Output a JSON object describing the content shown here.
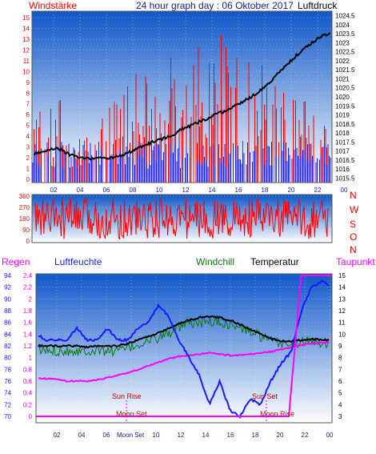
{
  "colors": {
    "red": "#ff0000",
    "blue": "#1a1aff",
    "green": "#0a7a0a",
    "black": "#000000",
    "magenta": "#ff00ff",
    "navy": "#1a1a8c",
    "bg_top": "#0f57c8",
    "bg_bottom": "#ffffff"
  },
  "header": {
    "left_label": "Windstärke",
    "title": "24 hour graph day : 06 Oktober 2017",
    "right_label": "Luftdruck"
  },
  "chart_data": [
    {
      "type": "bar",
      "name": "wind-pressure",
      "x_ticks": [
        "02",
        "04",
        "06",
        "08",
        "10",
        "12",
        "14",
        "16",
        "18",
        "20",
        "22",
        "00"
      ],
      "y_left_ticks": [
        "0",
        "1",
        "2",
        "3",
        "4",
        "5",
        "6",
        "7",
        "8",
        "9",
        "10",
        "11",
        "12",
        "13",
        "14",
        "15"
      ],
      "y_left_range": [
        0,
        15
      ],
      "y_right_ticks": [
        "1015.5",
        "1016",
        "1016.5",
        "1017",
        "1017.5",
        "1018",
        "1018.5",
        "1019",
        "1019.5",
        "1020",
        "1020.5",
        "1021",
        "1021.5",
        "1022",
        "1022.5",
        "1023",
        "1023.5",
        "1024",
        "1024.5"
      ],
      "y_right_range": [
        1015.25,
        1024.75
      ],
      "series": [
        {
          "name": "Windstärke",
          "color": "red",
          "points": [
            [
              0,
              4
            ],
            [
              1,
              6
            ],
            [
              2,
              7
            ],
            [
              3,
              4
            ],
            [
              4,
              3
            ],
            [
              5,
              5
            ],
            [
              6,
              5
            ],
            [
              7,
              8
            ],
            [
              8,
              9
            ],
            [
              9,
              8
            ],
            [
              10,
              9
            ],
            [
              11,
              10
            ],
            [
              12,
              9
            ],
            [
              13,
              11
            ],
            [
              14,
              9
            ],
            [
              15,
              11
            ],
            [
              16,
              13
            ],
            [
              17,
              10
            ],
            [
              18,
              10
            ],
            [
              19,
              9
            ],
            [
              20,
              8
            ],
            [
              21,
              7
            ],
            [
              22,
              6
            ],
            [
              23,
              6
            ],
            [
              24,
              4
            ]
          ]
        },
        {
          "name": "Luftdruck",
          "points": [
            [
              0,
              1016.8
            ],
            [
              1,
              1017.0
            ],
            [
              2,
              1017.2
            ],
            [
              3,
              1016.8
            ],
            [
              4,
              1016.6
            ],
            [
              5,
              1016.6
            ],
            [
              6,
              1016.6
            ],
            [
              7,
              1016.7
            ],
            [
              8,
              1017.0
            ],
            [
              9,
              1017.3
            ],
            [
              10,
              1017.6
            ],
            [
              11,
              1017.8
            ],
            [
              12,
              1018.2
            ],
            [
              13,
              1018.5
            ],
            [
              14,
              1018.8
            ],
            [
              15,
              1019.1
            ],
            [
              16,
              1019.4
            ],
            [
              17,
              1019.8
            ],
            [
              18,
              1020.2
            ],
            [
              19,
              1020.8
            ],
            [
              20,
              1021.5
            ],
            [
              21,
              1022.2
            ],
            [
              22,
              1022.8
            ],
            [
              23,
              1023.3
            ],
            [
              24,
              1023.6
            ]
          ]
        }
      ]
    },
    {
      "type": "bar",
      "name": "wind-direction",
      "x_ticks": [
        "02",
        "04",
        "06",
        "08",
        "10",
        "12",
        "14",
        "16",
        "18",
        "20",
        "22",
        "00"
      ],
      "y_ticks": [
        "0",
        "90",
        "180",
        "270",
        "360"
      ],
      "y_range": [
        0,
        360
      ],
      "right_labels": [
        "N",
        "W",
        "S",
        "O",
        "N"
      ],
      "series": [
        {
          "color": "red",
          "points": [
            [
              0,
              20
            ],
            [
              1,
              340
            ],
            [
              2,
              10
            ],
            [
              3,
              350
            ],
            [
              4,
              30
            ],
            [
              5,
              300
            ],
            [
              6,
              40
            ],
            [
              7,
              330
            ],
            [
              8,
              20
            ],
            [
              9,
              350
            ],
            [
              10,
              10
            ],
            [
              11,
              340
            ],
            [
              12,
              30
            ],
            [
              13,
              320
            ],
            [
              14,
              15
            ],
            [
              15,
              345
            ],
            [
              16,
              25
            ],
            [
              17,
              335
            ],
            [
              18,
              10
            ],
            [
              19,
              350
            ],
            [
              20,
              20
            ],
            [
              21,
              330
            ],
            [
              22,
              10
            ],
            [
              23,
              340
            ],
            [
              24,
              20
            ]
          ]
        }
      ]
    },
    {
      "type": "line",
      "name": "humidity-temperature",
      "legend": {
        "regen": "Regen",
        "luftfeuchte": "Luftfeuchte",
        "windchill": "Windchill",
        "temperatur": "Temperatur",
        "taupunkt": "Taupunkt"
      },
      "x_ticks": [
        "02",
        "04",
        "06",
        "08",
        "10",
        "12",
        "14",
        "16",
        "18",
        "20",
        "22",
        "00"
      ],
      "y_hum_ticks": [
        "70",
        "72",
        "74",
        "76",
        "78",
        "80",
        "82",
        "84",
        "86",
        "88",
        "90",
        "92",
        "94"
      ],
      "y_hum_range": [
        70,
        94
      ],
      "y_rain_ticks": [
        "0",
        "0.2",
        "0.4",
        "0.6",
        "0.8",
        "1",
        "1.2",
        "1.4",
        "1.6",
        "1.8",
        "2",
        "2.2",
        "2.4"
      ],
      "y_rain_range": [
        0,
        2.4
      ],
      "y_temp_ticks": [
        "3",
        "4",
        "5",
        "6",
        "7",
        "8",
        "9",
        "10",
        "11",
        "12",
        "13",
        "14",
        "15"
      ],
      "y_temp_range": [
        3,
        15
      ],
      "annotations": {
        "sun_rise": "Sun Rise",
        "sun_set": "Sun Set",
        "moon_set": "Moon Set",
        "moon_rise": "Moon Rise"
      },
      "series": [
        {
          "name": "Luftfeuchte",
          "color": "blue",
          "points": [
            [
              0,
              84
            ],
            [
              1,
              83
            ],
            [
              2,
              83
            ],
            [
              3,
              83
            ],
            [
              4,
              85
            ],
            [
              5,
              83
            ],
            [
              6,
              83
            ],
            [
              7,
              85
            ],
            [
              8,
              83
            ],
            [
              9,
              83
            ],
            [
              10,
              85
            ],
            [
              11,
              86
            ],
            [
              12,
              89
            ],
            [
              13,
              87
            ],
            [
              14,
              83
            ],
            [
              15,
              80
            ],
            [
              16,
              77
            ],
            [
              17,
              72
            ],
            [
              18,
              76
            ],
            [
              19,
              71
            ],
            [
              20,
              70
            ],
            [
              21,
              73
            ],
            [
              22,
              72
            ],
            [
              23,
              76
            ],
            [
              24,
              79
            ],
            [
              25,
              81
            ],
            [
              26,
              88
            ],
            [
              27,
              92
            ],
            [
              28,
              93
            ],
            [
              29,
              92
            ]
          ]
        },
        {
          "name": "Windchill",
          "color": "green",
          "points": [
            [
              0,
              8.6
            ],
            [
              1,
              8.6
            ],
            [
              2,
              8.6
            ],
            [
              3,
              8.6
            ],
            [
              4,
              8.6
            ],
            [
              5,
              8.6
            ],
            [
              6,
              8.6
            ],
            [
              7,
              8.6
            ],
            [
              8,
              8.6
            ],
            [
              9,
              8.8
            ],
            [
              10,
              9.1
            ],
            [
              11,
              9.4
            ],
            [
              12,
              9.7
            ],
            [
              13,
              10.1
            ],
            [
              14,
              10.5
            ],
            [
              15,
              10.8
            ],
            [
              16,
              11.0
            ],
            [
              17,
              11.1
            ],
            [
              18,
              11.0
            ],
            [
              19,
              10.8
            ],
            [
              20,
              10.5
            ],
            [
              21,
              10.2
            ],
            [
              22,
              9.8
            ],
            [
              23,
              9.4
            ],
            [
              24,
              9.2
            ],
            [
              25,
              9.2
            ],
            [
              26,
              9.3
            ],
            [
              27,
              9.4
            ],
            [
              28,
              9.3
            ],
            [
              29,
              9.3
            ]
          ]
        },
        {
          "name": "Temperatur",
          "color": "black",
          "points": [
            [
              0,
              9.0
            ],
            [
              1,
              9.0
            ],
            [
              2,
              9.0
            ],
            [
              3,
              9.0
            ],
            [
              4,
              9.0
            ],
            [
              5,
              8.9
            ],
            [
              6,
              9.0
            ],
            [
              7,
              9.0
            ],
            [
              8,
              9.0
            ],
            [
              9,
              9.2
            ],
            [
              10,
              9.5
            ],
            [
              11,
              9.8
            ],
            [
              12,
              10.1
            ],
            [
              13,
              10.5
            ],
            [
              14,
              10.9
            ],
            [
              15,
              11.2
            ],
            [
              16,
              11.4
            ],
            [
              17,
              11.5
            ],
            [
              18,
              11.4
            ],
            [
              19,
              11.2
            ],
            [
              20,
              10.8
            ],
            [
              21,
              10.4
            ],
            [
              22,
              10.0
            ],
            [
              23,
              9.6
            ],
            [
              24,
              9.4
            ],
            [
              25,
              9.4
            ],
            [
              26,
              9.5
            ],
            [
              27,
              9.6
            ],
            [
              28,
              9.5
            ],
            [
              29,
              9.5
            ]
          ]
        },
        {
          "name": "Taupunkt",
          "color": "magenta",
          "points": [
            [
              0,
              6.3
            ],
            [
              1,
              6.2
            ],
            [
              2,
              6.2
            ],
            [
              3,
              6.0
            ],
            [
              4,
              6.0
            ],
            [
              5,
              6.0
            ],
            [
              6,
              6.1
            ],
            [
              7,
              6.3
            ],
            [
              8,
              6.5
            ],
            [
              9,
              6.7
            ],
            [
              10,
              7.0
            ],
            [
              11,
              7.3
            ],
            [
              12,
              7.6
            ],
            [
              13,
              7.9
            ],
            [
              14,
              8.1
            ],
            [
              15,
              8.2
            ],
            [
              16,
              8.3
            ],
            [
              17,
              8.4
            ],
            [
              18,
              8.3
            ],
            [
              19,
              8.2
            ],
            [
              20,
              8.2
            ],
            [
              21,
              8.3
            ],
            [
              22,
              8.4
            ],
            [
              23,
              8.5
            ],
            [
              24,
              8.7
            ],
            [
              25,
              8.9
            ],
            [
              26,
              9.1
            ],
            [
              27,
              9.2
            ],
            [
              28,
              9.3
            ],
            [
              29,
              9.3
            ]
          ]
        },
        {
          "name": "Regen",
          "color": "magenta",
          "points": [
            [
              0,
              0
            ],
            [
              20.5,
              0
            ],
            [
              21.5,
              2.4
            ],
            [
              24,
              2.4
            ]
          ]
        }
      ]
    }
  ]
}
